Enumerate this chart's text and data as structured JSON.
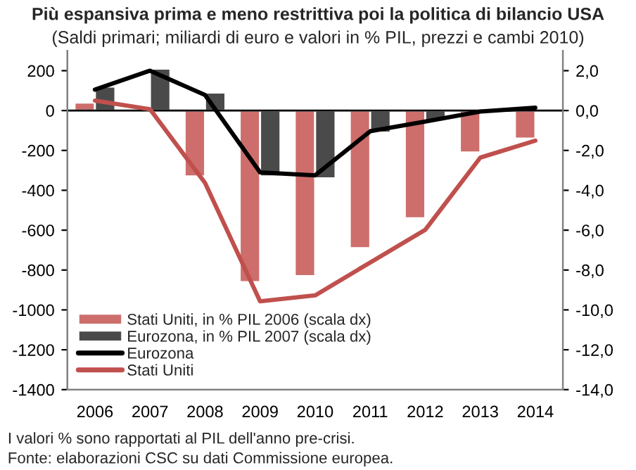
{
  "chart_data": {
    "type": "bar",
    "title": "Più espansiva prima e meno restrittiva poi la politica di bilancio USA",
    "subtitle": "(Saldi primari; miliardi di euro e valori in % PIL, prezzi e cambi 2010)",
    "categories": [
      "2006",
      "2007",
      "2008",
      "2009",
      "2010",
      "2011",
      "2012",
      "2013",
      "2014"
    ],
    "series": [
      {
        "name": "Stati Uniti, in % PIL 2006 (scala dx)",
        "axis": "y2",
        "color": "#cd6e6c",
        "values": [
          0.4,
          null,
          -3.3,
          -8.6,
          -8.3,
          -6.9,
          -5.4,
          -2.1,
          -1.4
        ]
      },
      {
        "name": "Eurozona, in % PIL 2007 (scala dx)",
        "axis": "y2",
        "color": "#4a4a4a",
        "values": [
          1.2,
          2.1,
          0.9,
          -3.3,
          -3.4,
          -1.1,
          -0.5,
          null,
          0.1
        ]
      },
      {
        "name": "Eurozona",
        "type": "line",
        "color": "#000000",
        "values": [
          105,
          200,
          78,
          -310,
          -325,
          -104,
          -55,
          -5,
          14
        ]
      },
      {
        "name": "Stati Uniti",
        "type": "line",
        "color": "#c0504d",
        "values": [
          50,
          7,
          -363,
          -957,
          -927,
          -762,
          -598,
          -236,
          -151
        ]
      }
    ],
    "ylim": [
      -1400,
      300
    ],
    "yticks": [
      -1400,
      -1200,
      -1000,
      -800,
      -600,
      -400,
      -200,
      0,
      200
    ],
    "y2lim": [
      -14,
      3
    ],
    "y2ticks": [
      {
        "value": -14,
        "label": "-14,0"
      },
      {
        "value": -12,
        "label": "-12,0"
      },
      {
        "value": -10,
        "label": "-10,0"
      },
      {
        "value": -8,
        "label": "-8,0"
      },
      {
        "value": -6,
        "label": "-6,0"
      },
      {
        "value": -4,
        "label": "-4,0"
      },
      {
        "value": -2,
        "label": "-2,0"
      },
      {
        "value": 0,
        "label": "0,0"
      },
      {
        "value": 2,
        "label": "2,0"
      }
    ],
    "ref_lines": [
      {
        "axis": "y",
        "value": 0,
        "color": "#000000"
      }
    ],
    "legend": "bottom left",
    "grid": false,
    "annotations": [
      "I valori % sono rapportati al PIL dell'anno pre-crisi.",
      "Fonte: elaborazioni CSC su dati Commissione europea."
    ]
  }
}
